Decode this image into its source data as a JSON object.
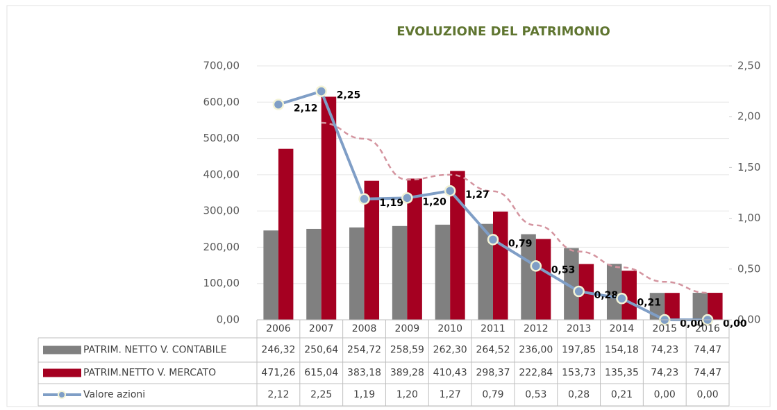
{
  "chart_data": {
    "type": "bar_line",
    "title": "EVOLUZIONE DEL PATRIMONIO",
    "categories": [
      "2006",
      "2007",
      "2008",
      "2009",
      "2010",
      "2011",
      "2012",
      "2013",
      "2014",
      "2015",
      "2016"
    ],
    "series": [
      {
        "name": "PATRIM. NETTO V. CONTABILE",
        "type": "bar",
        "color": "#808080",
        "values": [
          246.32,
          250.64,
          254.72,
          258.59,
          262.3,
          264.52,
          236.0,
          197.85,
          154.18,
          74.23,
          74.47
        ],
        "value_labels": [
          "246,32",
          "250,64",
          "254,72",
          "258,59",
          "262,30",
          "264,52",
          "236,00",
          "197,85",
          "154,18",
          "74,23",
          "74,47"
        ]
      },
      {
        "name": "PATRIM.NETTO V. MERCATO",
        "type": "bar",
        "color": "#a50021",
        "values": [
          471.26,
          615.04,
          383.18,
          389.28,
          410.43,
          298.37,
          222.84,
          153.73,
          135.35,
          74.23,
          74.47
        ],
        "value_labels": [
          "471,26",
          "615,04",
          "383,18",
          "389,28",
          "410,43",
          "298,37",
          "222,84",
          "153,73",
          "135,35",
          "74,23",
          "74,47"
        ]
      },
      {
        "name": "Valore azioni",
        "type": "line",
        "axis": "y2",
        "color": "#7f9ec6",
        "values": [
          2.12,
          2.25,
          1.19,
          1.2,
          1.27,
          0.79,
          0.53,
          0.28,
          0.21,
          0.0,
          0.0
        ],
        "value_labels": [
          "2,12",
          "2,25",
          "1,19",
          "1,20",
          "1,27",
          "0,79",
          "0,53",
          "0,28",
          "0,21",
          "0,00",
          "0,00"
        ]
      }
    ],
    "trendline": {
      "series": 1,
      "type": "moving_average",
      "period": 2,
      "color": "#d4949f"
    },
    "ylim": [
      0,
      700
    ],
    "yticks": [
      {
        "value": 0,
        "label": "0,00"
      },
      {
        "value": 100,
        "label": "100,00"
      },
      {
        "value": 200,
        "label": "200,00"
      },
      {
        "value": 300,
        "label": "300,00"
      },
      {
        "value": 400,
        "label": "400,00"
      },
      {
        "value": 500,
        "label": "500,00"
      },
      {
        "value": 600,
        "label": "600,00"
      },
      {
        "value": 700,
        "label": "700,00"
      }
    ],
    "y2lim": [
      0,
      2.5
    ],
    "y2ticks": [
      {
        "value": 0,
        "label": "0,00"
      },
      {
        "value": 0.5,
        "label": "0,50"
      },
      {
        "value": 1,
        "label": "1,00"
      },
      {
        "value": 1.5,
        "label": "1,50"
      },
      {
        "value": 2,
        "label": "2,00"
      },
      {
        "value": 2.5,
        "label": "2,50"
      }
    ],
    "data_table": true
  }
}
